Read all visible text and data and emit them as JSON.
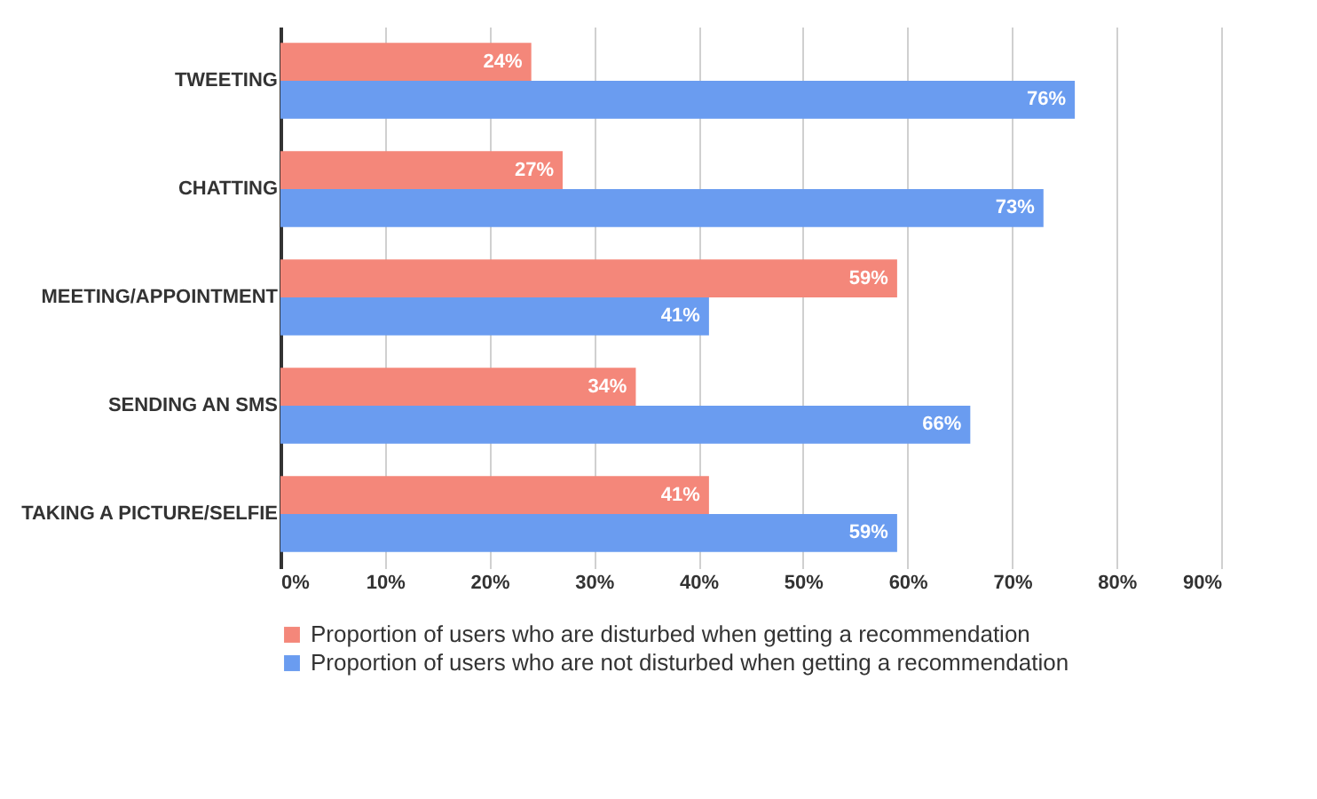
{
  "chart_data": {
    "type": "bar",
    "orientation": "horizontal",
    "categories": [
      "TWEETING",
      "CHATTING",
      "MEETING/APPOINTMENT",
      "SENDING AN SMS",
      "TAKING A PICTURE/SELFIE"
    ],
    "series": [
      {
        "name": "Proportion of users who are disturbed when getting a recommendation",
        "color": "#f4877a",
        "values": [
          24,
          27,
          59,
          34,
          41
        ],
        "value_labels": [
          "24%",
          "27%",
          "59%",
          "34%",
          "41%"
        ]
      },
      {
        "name": "Proportion of users who are not disturbed when getting a recommendation",
        "color": "#6a9cf0",
        "values": [
          76,
          73,
          41,
          66,
          59
        ],
        "value_labels": [
          "76%",
          "73%",
          "41%",
          "66%",
          "59%"
        ]
      }
    ],
    "xlim": [
      0,
      90
    ],
    "xticks": [
      {
        "value": 0,
        "label": "0%"
      },
      {
        "value": 10,
        "label": "10%"
      },
      {
        "value": 20,
        "label": "20%"
      },
      {
        "value": 30,
        "label": "30%"
      },
      {
        "value": 40,
        "label": "40%"
      },
      {
        "value": 50,
        "label": "50%"
      },
      {
        "value": 60,
        "label": "60%"
      },
      {
        "value": 70,
        "label": "70%"
      },
      {
        "value": 80,
        "label": "80%"
      },
      {
        "value": 90,
        "label": "90%"
      }
    ],
    "grid": "x",
    "legend": "bottom"
  }
}
